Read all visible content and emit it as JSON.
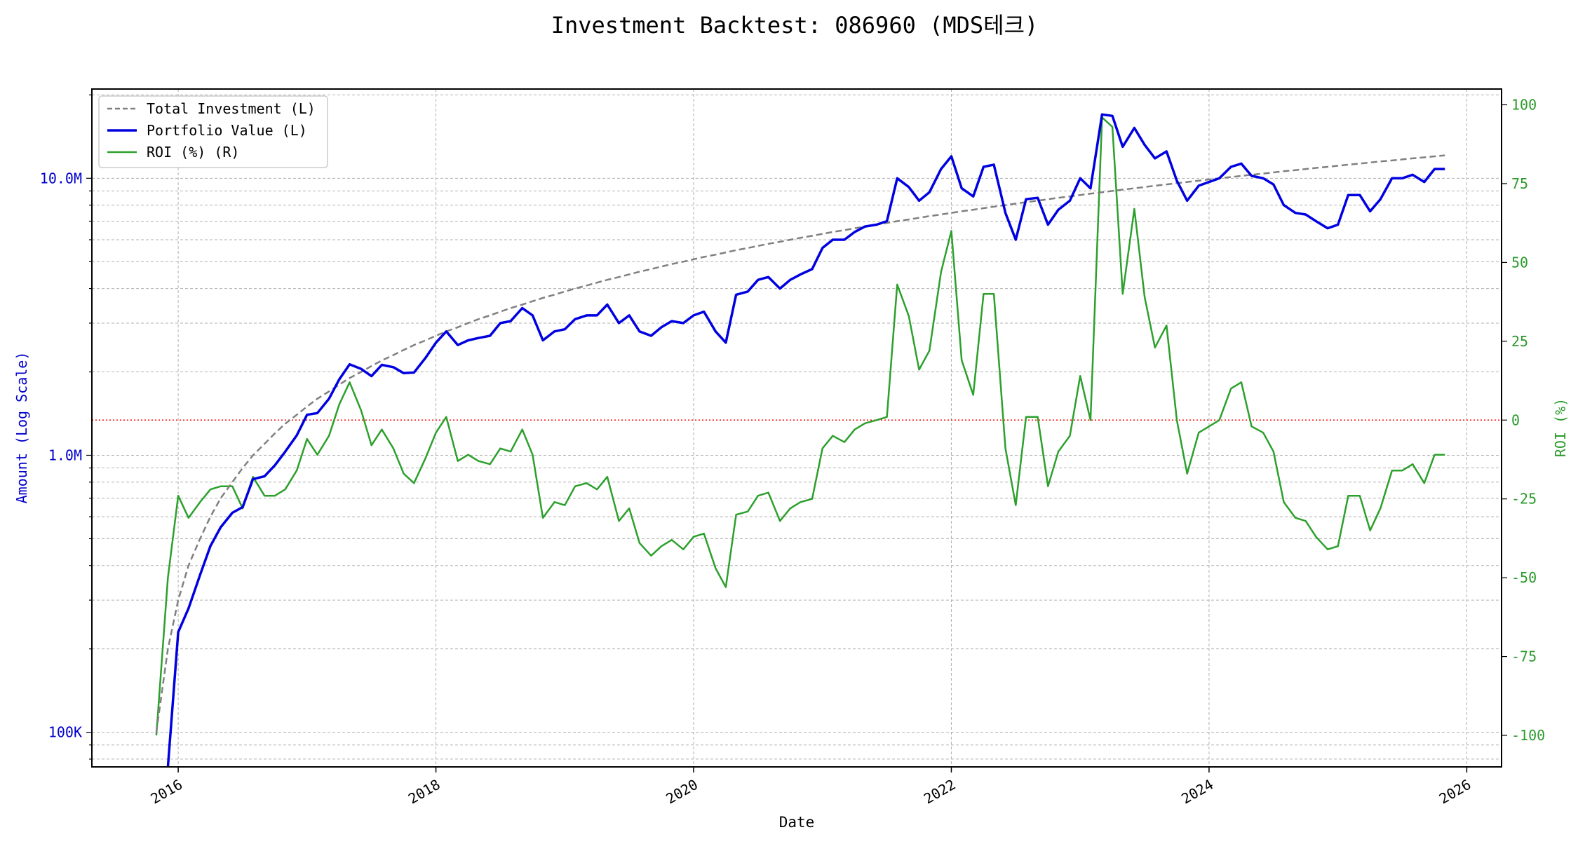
{
  "chart_data": {
    "type": "line",
    "title": "Investment Backtest: 086960 (MDS테크)",
    "xlabel": "Date",
    "ylabel_left": "Amount (Log Scale)",
    "ylabel_right": "ROI (%)",
    "y_left_scale": "log",
    "y_left_ticks": [
      "100K",
      "1.0M",
      "10.0M"
    ],
    "y_right_ticks": [
      "-100",
      "-75",
      "-50",
      "-25",
      "0",
      "25",
      "50",
      "75",
      "100"
    ],
    "x_ticks": [
      "2016",
      "2018",
      "2020",
      "2022",
      "2024",
      "2026"
    ],
    "x_range": [
      2015.33,
      2026.27
    ],
    "y_left_range": [
      75000,
      21000000
    ],
    "y_right_range": [
      -110,
      105
    ],
    "grid": true,
    "legend_position": "top-left",
    "zero_line_color": "#ff0000",
    "series": [
      {
        "name": "Total Investment (L)",
        "axis": "left",
        "style": "dashed",
        "color": "#808080",
        "x": [
          2015.83,
          2015.92,
          2016.0,
          2016.08,
          2016.17,
          2016.25,
          2016.33,
          2016.42,
          2016.5,
          2016.58,
          2016.67,
          2016.75,
          2016.83,
          2016.92,
          2017.0,
          2017.08,
          2017.17,
          2017.25,
          2017.33,
          2017.42,
          2017.5,
          2017.58,
          2017.67,
          2017.75,
          2017.83,
          2017.92,
          2018.0,
          2018.08,
          2018.17,
          2018.25,
          2018.33,
          2018.42,
          2018.5,
          2018.58,
          2018.67,
          2018.75,
          2018.83,
          2018.92,
          2019.0,
          2019.08,
          2019.17,
          2019.25,
          2019.33,
          2019.42,
          2019.5,
          2019.58,
          2019.67,
          2019.75,
          2019.83,
          2019.92,
          2020.0,
          2020.08,
          2020.17,
          2020.25,
          2020.33,
          2020.42,
          2020.5,
          2020.58,
          2020.67,
          2020.75,
          2020.83,
          2020.92,
          2021.0,
          2021.08,
          2021.17,
          2021.25,
          2021.33,
          2021.42,
          2021.5,
          2021.58,
          2021.67,
          2021.75,
          2021.83,
          2021.92,
          2022.0,
          2022.08,
          2022.17,
          2022.25,
          2022.33,
          2022.42,
          2022.5,
          2022.58,
          2022.67,
          2022.75,
          2022.83,
          2022.92,
          2023.0,
          2023.08,
          2023.17,
          2023.25,
          2023.33,
          2023.42,
          2023.5,
          2023.58,
          2023.67,
          2023.75,
          2023.83,
          2023.92,
          2024.0,
          2024.08,
          2024.17,
          2024.25,
          2024.33,
          2024.42,
          2024.5,
          2024.58,
          2024.67,
          2024.75,
          2024.83,
          2024.92,
          2025.0,
          2025.08,
          2025.17,
          2025.25,
          2025.33,
          2025.42,
          2025.5,
          2025.58,
          2025.67,
          2025.75,
          2025.83
        ],
        "values": [
          100000,
          200000,
          300000,
          400000,
          500000,
          600000,
          700000,
          800000,
          900000,
          1000000,
          1100000,
          1200000,
          1300000,
          1400000,
          1500000,
          1600000,
          1700000,
          1800000,
          1900000,
          2000000,
          2100000,
          2200000,
          2300000,
          2400000,
          2500000,
          2600000,
          2700000,
          2800000,
          2900000,
          3000000,
          3100000,
          3200000,
          3300000,
          3400000,
          3500000,
          3600000,
          3700000,
          3800000,
          3900000,
          4000000,
          4100000,
          4200000,
          4300000,
          4400000,
          4500000,
          4600000,
          4700000,
          4800000,
          4900000,
          5000000,
          5100000,
          5200000,
          5300000,
          5400000,
          5500000,
          5600000,
          5700000,
          5800000,
          5900000,
          6000000,
          6100000,
          6200000,
          6300000,
          6400000,
          6500000,
          6600000,
          6700000,
          6800000,
          6900000,
          7000000,
          7100000,
          7200000,
          7300000,
          7400000,
          7500000,
          7600000,
          7700000,
          7800000,
          7900000,
          8000000,
          8100000,
          8200000,
          8300000,
          8400000,
          8500000,
          8600000,
          8700000,
          8800000,
          8900000,
          9000000,
          9100000,
          9200000,
          9300000,
          9400000,
          9500000,
          9600000,
          9700000,
          9800000,
          9900000,
          10000000,
          10100000,
          10200000,
          10300000,
          10400000,
          10500000,
          10600000,
          10700000,
          10800000,
          10900000,
          11000000,
          11100000,
          11200000,
          11300000,
          11400000,
          11500000,
          11600000,
          11700000,
          11800000,
          11900000,
          12000000,
          12100000
        ]
      },
      {
        "name": "Portfolio Value (L)",
        "axis": "left",
        "style": "solid",
        "color": "#0000e0",
        "x": [
          2015.92,
          2016.0,
          2016.08,
          2016.17,
          2016.25,
          2016.33,
          2016.42,
          2016.5,
          2016.58,
          2016.67,
          2016.75,
          2016.83,
          2016.92,
          2017.0,
          2017.08,
          2017.17,
          2017.25,
          2017.33,
          2017.42,
          2017.5,
          2017.58,
          2017.67,
          2017.75,
          2017.83,
          2017.92,
          2018.0,
          2018.08,
          2018.17,
          2018.25,
          2018.33,
          2018.42,
          2018.5,
          2018.58,
          2018.67,
          2018.75,
          2018.83,
          2018.92,
          2019.0,
          2019.08,
          2019.17,
          2019.25,
          2019.33,
          2019.42,
          2019.5,
          2019.58,
          2019.67,
          2019.75,
          2019.83,
          2019.92,
          2020.0,
          2020.08,
          2020.17,
          2020.25,
          2020.33,
          2020.42,
          2020.5,
          2020.58,
          2020.67,
          2020.75,
          2020.83,
          2020.92,
          2021.0,
          2021.08,
          2021.17,
          2021.25,
          2021.33,
          2021.42,
          2021.5,
          2021.58,
          2021.67,
          2021.75,
          2021.83,
          2021.92,
          2022.0,
          2022.08,
          2022.17,
          2022.25,
          2022.33,
          2022.42,
          2022.5,
          2022.58,
          2022.67,
          2022.75,
          2022.83,
          2022.92,
          2023.0,
          2023.08,
          2023.17,
          2023.25,
          2023.33,
          2023.42,
          2023.5,
          2023.58,
          2023.67,
          2023.75,
          2023.83,
          2023.92,
          2024.0,
          2024.08,
          2024.17,
          2024.25,
          2024.33,
          2024.42,
          2024.5,
          2024.58,
          2024.67,
          2024.75,
          2024.83,
          2024.92,
          2025.0,
          2025.08,
          2025.17,
          2025.25,
          2025.33,
          2025.42,
          2025.5,
          2025.58,
          2025.67,
          2025.75,
          2025.83
        ],
        "values": [
          75000,
          230000,
          280000,
          370000,
          470000,
          550000,
          620000,
          650000,
          820000,
          840000,
          920000,
          1030000,
          1180000,
          1400000,
          1420000,
          1600000,
          1880000,
          2130000,
          2050000,
          1930000,
          2120000,
          2080000,
          1980000,
          1990000,
          2250000,
          2550000,
          2800000,
          2500000,
          2600000,
          2650000,
          2700000,
          3000000,
          3050000,
          3400000,
          3200000,
          2600000,
          2800000,
          2850000,
          3100000,
          3200000,
          3200000,
          3500000,
          3000000,
          3200000,
          2800000,
          2700000,
          2900000,
          3050000,
          3000000,
          3200000,
          3300000,
          2800000,
          2550000,
          3800000,
          3900000,
          4300000,
          4400000,
          4000000,
          4300000,
          4500000,
          4700000,
          5600000,
          6000000,
          6000000,
          6400000,
          6700000,
          6800000,
          7000000,
          10000000,
          9300000,
          8300000,
          8900000,
          10800000,
          12000000,
          9200000,
          8600000,
          11000000,
          11200000,
          7500000,
          6000000,
          8400000,
          8500000,
          6800000,
          7700000,
          8300000,
          10000000,
          9200000,
          17000000,
          16800000,
          13000000,
          15200000,
          13200000,
          11800000,
          12500000,
          9800000,
          8300000,
          9400000,
          9700000,
          10000000,
          11000000,
          11300000,
          10200000,
          10000000,
          9500000,
          8000000,
          7500000,
          7400000,
          7000000,
          6600000,
          6800000,
          8700000,
          8700000,
          7600000,
          8400000,
          10000000,
          10000000,
          10300000,
          9700000,
          10800000,
          10800000
        ]
      },
      {
        "name": "ROI (%) (R)",
        "axis": "right",
        "style": "solid",
        "color": "#2ca02c",
        "x": [
          2015.83,
          2015.92,
          2016.0,
          2016.08,
          2016.17,
          2016.25,
          2016.33,
          2016.42,
          2016.5,
          2016.58,
          2016.67,
          2016.75,
          2016.83,
          2016.92,
          2017.0,
          2017.08,
          2017.17,
          2017.25,
          2017.33,
          2017.42,
          2017.5,
          2017.58,
          2017.67,
          2017.75,
          2017.83,
          2017.92,
          2018.0,
          2018.08,
          2018.17,
          2018.25,
          2018.33,
          2018.42,
          2018.5,
          2018.58,
          2018.67,
          2018.75,
          2018.83,
          2018.92,
          2019.0,
          2019.08,
          2019.17,
          2019.25,
          2019.33,
          2019.42,
          2019.5,
          2019.58,
          2019.67,
          2019.75,
          2019.83,
          2019.92,
          2020.0,
          2020.08,
          2020.17,
          2020.25,
          2020.33,
          2020.42,
          2020.5,
          2020.58,
          2020.67,
          2020.75,
          2020.83,
          2020.92,
          2021.0,
          2021.08,
          2021.17,
          2021.25,
          2021.33,
          2021.42,
          2021.5,
          2021.58,
          2021.67,
          2021.75,
          2021.83,
          2021.92,
          2022.0,
          2022.08,
          2022.17,
          2022.25,
          2022.33,
          2022.42,
          2022.5,
          2022.58,
          2022.67,
          2022.75,
          2022.83,
          2022.92,
          2023.0,
          2023.08,
          2023.17,
          2023.25,
          2023.33,
          2023.42,
          2023.5,
          2023.58,
          2023.67,
          2023.75,
          2023.83,
          2023.92,
          2024.0,
          2024.08,
          2024.17,
          2024.25,
          2024.33,
          2024.42,
          2024.5,
          2024.58,
          2024.67,
          2024.75,
          2024.83,
          2024.92,
          2025.0,
          2025.08,
          2025.17,
          2025.25,
          2025.33,
          2025.42,
          2025.5,
          2025.58,
          2025.67,
          2025.75,
          2025.83
        ],
        "values": [
          -100,
          -50,
          -24,
          -31,
          -26,
          -22,
          -21,
          -21,
          -28,
          -18,
          -24,
          -24,
          -22,
          -16,
          -6,
          -11,
          -5,
          5,
          12,
          3,
          -8,
          -3,
          -9,
          -17,
          -20,
          -12,
          -4,
          1,
          -13,
          -11,
          -13,
          -14,
          -9,
          -10,
          -3,
          -11,
          -31,
          -26,
          -27,
          -21,
          -20,
          -22,
          -18,
          -32,
          -28,
          -39,
          -43,
          -40,
          -38,
          -41,
          -37,
          -36,
          -47,
          -53,
          -30,
          -29,
          -24,
          -23,
          -32,
          -28,
          -26,
          -25,
          -9,
          -5,
          -7,
          -3,
          -1,
          0,
          1,
          43,
          33,
          16,
          22,
          47,
          60,
          19,
          8,
          40,
          40,
          -9,
          -27,
          1,
          1,
          -21,
          -10,
          -5,
          14,
          0,
          96,
          93,
          40,
          67,
          39,
          23,
          30,
          0,
          -17,
          -4,
          -2,
          0,
          10,
          12,
          -2,
          -4,
          -10,
          -26,
          -31,
          -32,
          -37,
          -41,
          -40,
          -24,
          -24,
          -35,
          -28,
          -16,
          -16,
          -14,
          -20,
          -11,
          -11
        ]
      }
    ]
  }
}
